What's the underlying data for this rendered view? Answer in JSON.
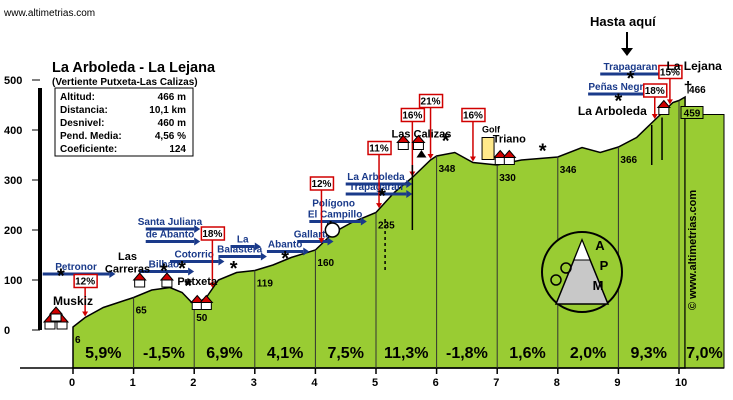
{
  "header": {
    "site": "www.altimetrias.com",
    "title": "La Arboleda - La Lejana",
    "subtitle": "(Vertiente  Putxeta-Las Calizas)",
    "hasta": "Hasta aquí",
    "vertical_site": "© www.altimetrias.com"
  },
  "stats": [
    {
      "label": "Altitud:",
      "value": "466 m"
    },
    {
      "label": "Distancia:",
      "value": "10,1 km"
    },
    {
      "label": "Desnivel:",
      "value": "460 m"
    },
    {
      "label": "Pend. Media:",
      "value": "4,56 %"
    },
    {
      "label": "Coeficiente:",
      "value": "124"
    }
  ],
  "logo": {
    "letters": [
      "A",
      "P",
      "M"
    ]
  },
  "chart_data": {
    "type": "area",
    "xlim": [
      0,
      10.1
    ],
    "ylim": [
      0,
      500
    ],
    "x_ticks": [
      0,
      1,
      2,
      3,
      4,
      5,
      6,
      7,
      8,
      9,
      10
    ],
    "y_ticks": [
      0,
      100,
      200,
      300,
      400,
      500
    ],
    "profile": [
      {
        "x": 0,
        "y": 6
      },
      {
        "x": 0.2,
        "y": 25
      },
      {
        "x": 0.5,
        "y": 45
      },
      {
        "x": 1.0,
        "y": 65
      },
      {
        "x": 1.3,
        "y": 80
      },
      {
        "x": 1.6,
        "y": 85
      },
      {
        "x": 1.8,
        "y": 75
      },
      {
        "x": 2.0,
        "y": 50
      },
      {
        "x": 2.2,
        "y": 65
      },
      {
        "x": 2.4,
        "y": 100
      },
      {
        "x": 2.7,
        "y": 115
      },
      {
        "x": 3.0,
        "y": 119
      },
      {
        "x": 3.3,
        "y": 130
      },
      {
        "x": 3.6,
        "y": 145
      },
      {
        "x": 4.0,
        "y": 160
      },
      {
        "x": 4.3,
        "y": 195
      },
      {
        "x": 4.6,
        "y": 215
      },
      {
        "x": 5.0,
        "y": 235
      },
      {
        "x": 5.3,
        "y": 275
      },
      {
        "x": 5.6,
        "y": 305
      },
      {
        "x": 5.9,
        "y": 340
      },
      {
        "x": 6.0,
        "y": 348
      },
      {
        "x": 6.3,
        "y": 355
      },
      {
        "x": 6.6,
        "y": 335
      },
      {
        "x": 7.0,
        "y": 330
      },
      {
        "x": 7.4,
        "y": 340
      },
      {
        "x": 8.0,
        "y": 346
      },
      {
        "x": 8.4,
        "y": 365
      },
      {
        "x": 8.7,
        "y": 355
      },
      {
        "x": 9.0,
        "y": 366
      },
      {
        "x": 9.3,
        "y": 385
      },
      {
        "x": 9.6,
        "y": 420
      },
      {
        "x": 9.9,
        "y": 455
      },
      {
        "x": 10.0,
        "y": 459
      },
      {
        "x": 10.1,
        "y": 466
      }
    ],
    "segment_gradients": [
      "5,9%",
      "-1,5%",
      "6,9%",
      "4,1%",
      "7,5%",
      "11,3%",
      "-1,8%",
      "1,6%",
      "2,0%",
      "9,3%",
      "7,0%"
    ],
    "altitude_labels": [
      {
        "x": 0,
        "y": 6,
        "text": "6"
      },
      {
        "x": 1.0,
        "y": 65,
        "text": "65"
      },
      {
        "x": 2.0,
        "y": 50,
        "text": "50"
      },
      {
        "x": 3.0,
        "y": 119,
        "text": "119"
      },
      {
        "x": 4.0,
        "y": 160,
        "text": "160"
      },
      {
        "x": 5.0,
        "y": 235,
        "text": "235"
      },
      {
        "x": 6.0,
        "y": 348,
        "text": "348"
      },
      {
        "x": 7.0,
        "y": 330,
        "text": "330"
      },
      {
        "x": 8.0,
        "y": 346,
        "text": "346"
      },
      {
        "x": 9.0,
        "y": 366,
        "text": "366"
      },
      {
        "x": 10.0,
        "y": 459,
        "text": "459"
      },
      {
        "x": 10.1,
        "y": 466,
        "text": "466"
      }
    ],
    "places": [
      {
        "text": "Muskiz",
        "x": 0,
        "y": 6
      },
      {
        "text": "Las",
        "x": 0.9,
        "y": 140
      },
      {
        "text": "Carreras",
        "x": 0.9,
        "y": 115
      },
      {
        "text": "Putxeta",
        "x": 2.05,
        "y": 90
      },
      {
        "text": "Las Calizas",
        "x": 5.75,
        "y": 385
      },
      {
        "text": "Triano",
        "x": 7.2,
        "y": 375
      },
      {
        "text": "La Arboleda",
        "x": 8.9,
        "y": 430
      },
      {
        "text": "La Lejana",
        "x": 10.25,
        "y": 520
      }
    ],
    "roads": [
      {
        "label": "Petronor",
        "x1": -0.5,
        "x2": 0.6,
        "y": 120
      },
      {
        "label": "Santa Juliana",
        "x1": 1.2,
        "x2": 2.0,
        "y": 210
      },
      {
        "label": "de Abanto",
        "x1": 1.2,
        "x2": 2.0,
        "y": 185
      },
      {
        "label": "Bilbao",
        "x1": 1.1,
        "x2": 1.9,
        "y": 125
      },
      {
        "label": "Cotorrio",
        "x1": 1.6,
        "x2": 2.4,
        "y": 145
      },
      {
        "label": "La",
        "x1": 2.6,
        "x2": 3.0,
        "y": 175
      },
      {
        "label": "Balastera",
        "x1": 2.4,
        "x2": 3.1,
        "y": 155
      },
      {
        "label": "Abanto",
        "x1": 3.2,
        "x2": 3.8,
        "y": 165
      },
      {
        "label": "Gallarta",
        "x1": 3.7,
        "x2": 4.2,
        "y": 185
      },
      {
        "label": "Polígono",
        "x1": 4.3,
        "x2": 4.3,
        "y": 247
      },
      {
        "label": "El Campillo",
        "x1": 3.9,
        "x2": 4.75,
        "y": 225
      },
      {
        "label": "La Arboleda",
        "x1": 4.5,
        "x2": 5.5,
        "y": 300
      },
      {
        "label": "Trapagaran",
        "x1": 4.5,
        "x2": 5.5,
        "y": 280
      },
      {
        "label": "Peñas Negras",
        "x1": 8.5,
        "x2": 9.6,
        "y": 480
      },
      {
        "label": "Trapagaran",
        "x1": 8.7,
        "x2": 9.7,
        "y": 520
      }
    ],
    "percent_boxes": [
      {
        "text": "12%",
        "x": 0.2,
        "y": 87
      },
      {
        "text": "18%",
        "x": 2.3,
        "y": 182
      },
      {
        "text": "12%",
        "x": 4.1,
        "y": 282
      },
      {
        "text": "11%",
        "x": 5.05,
        "y": 353
      },
      {
        "text": "16%",
        "x": 5.6,
        "y": 419
      },
      {
        "text": "21%",
        "x": 5.9,
        "y": 447
      },
      {
        "text": "16%",
        "x": 6.6,
        "y": 419
      },
      {
        "text": "18%",
        "x": 9.6,
        "y": 468
      },
      {
        "text": "15%",
        "x": 9.85,
        "y": 505
      }
    ]
  }
}
